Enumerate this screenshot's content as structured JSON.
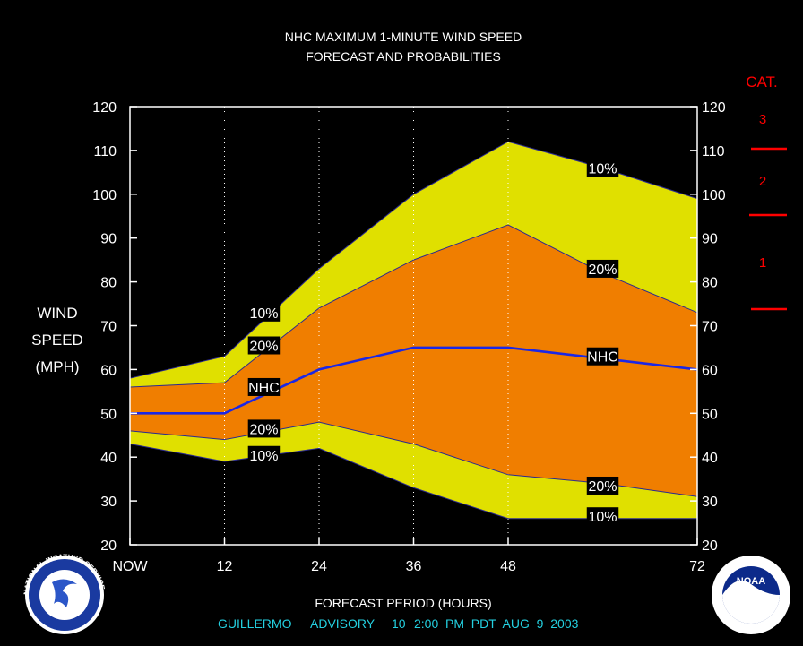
{
  "colors": {
    "background": "#000000",
    "outer_band": "#e0e000",
    "inner_band": "#f07e00",
    "nhc_line": "#1b27e6",
    "band_edge": "#2a2a90",
    "grid": "#ffffff",
    "category": "#ff0000",
    "advisory": "#24d0e0"
  },
  "chart_data": {
    "type": "area",
    "title": "NHC MAXIMUM 1-MINUTE WIND SPEED",
    "subtitle": "FORECAST AND PROBABILITIES",
    "xlabel": "FORECAST PERIOD (HOURS)",
    "ylabel_lines": [
      "WIND",
      "SPEED",
      "(MPH)"
    ],
    "xlim": [
      0,
      72
    ],
    "ylim": [
      20,
      120
    ],
    "x_ticks": [
      {
        "value": 0,
        "label": "NOW"
      },
      {
        "value": 12,
        "label": "12"
      },
      {
        "value": 24,
        "label": "24"
      },
      {
        "value": 36,
        "label": "36"
      },
      {
        "value": 48,
        "label": "48"
      },
      {
        "value": 72,
        "label": "72"
      }
    ],
    "y_ticks": [
      20,
      30,
      40,
      50,
      60,
      70,
      80,
      90,
      100,
      110,
      120
    ],
    "x": [
      0,
      12,
      24,
      36,
      48,
      60,
      72
    ],
    "series": [
      {
        "name": "10%",
        "role": "upper_outer",
        "values": [
          58,
          63,
          83,
          100,
          112,
          106,
          99
        ]
      },
      {
        "name": "20%",
        "role": "upper_inner",
        "values": [
          56,
          57,
          74,
          85,
          93,
          82,
          73
        ]
      },
      {
        "name": "NHC",
        "role": "forecast",
        "values": [
          50,
          50,
          60,
          65,
          65,
          62.5,
          60
        ]
      },
      {
        "name": "20%",
        "role": "lower_inner",
        "values": [
          46,
          44,
          48,
          43,
          36,
          34,
          31
        ]
      },
      {
        "name": "10%",
        "role": "lower_outer",
        "values": [
          43,
          39,
          42,
          33,
          26,
          26,
          26
        ]
      }
    ],
    "series_labels": [
      {
        "text": "10%",
        "x": 17,
        "y": 73
      },
      {
        "text": "20%",
        "x": 17,
        "y": 65.5
      },
      {
        "text": "NHC",
        "x": 17,
        "y": 56
      },
      {
        "text": "20%",
        "x": 17,
        "y": 46.5
      },
      {
        "text": "10%",
        "x": 17,
        "y": 40.5
      },
      {
        "text": "10%",
        "x": 60,
        "y": 106
      },
      {
        "text": "20%",
        "x": 60,
        "y": 83
      },
      {
        "text": "NHC",
        "x": 60,
        "y": 63
      },
      {
        "text": "20%",
        "x": 60,
        "y": 33.5
      },
      {
        "text": "10%",
        "x": 60,
        "y": 26.5
      }
    ],
    "category_scale": {
      "title": "CAT.",
      "labels": [
        "3",
        "2",
        "1"
      ]
    }
  },
  "footer": {
    "storm": "GUILLERMO",
    "advisory": "ADVISORY",
    "number": "10",
    "time": "2:00  PM  PDT  AUG  9  2003"
  },
  "logos": {
    "left_text": "NATIONAL WEATHER SERVICE",
    "right_text": "NOAA"
  }
}
